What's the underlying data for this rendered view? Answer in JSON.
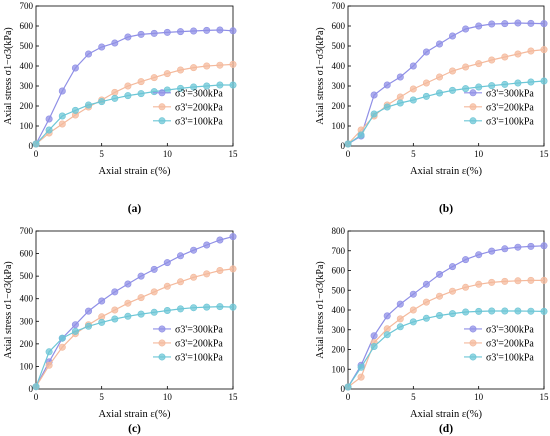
{
  "chart_data": [
    {
      "type": "line",
      "panel_label": "(a)",
      "xlabel": "Axial strain ε(%)",
      "ylabel": "Axial stress σ1−σ3(kPa)",
      "xlim": [
        0,
        15
      ],
      "ylim": [
        0,
        700
      ],
      "xticks": [
        0,
        5,
        10,
        15
      ],
      "yticks": [
        0,
        100,
        200,
        300,
        400,
        500,
        600,
        700
      ],
      "legend_position": "right-middle",
      "series": [
        {
          "name": "σ3'=300kPa",
          "color": "#8f8fe6",
          "points": [
            [
              0,
              10
            ],
            [
              1,
              135
            ],
            [
              2,
              275
            ],
            [
              3,
              390
            ],
            [
              4,
              460
            ],
            [
              5,
              495
            ],
            [
              6,
              515
            ],
            [
              7,
              545
            ],
            [
              8,
              558
            ],
            [
              9,
              563
            ],
            [
              10,
              568
            ],
            [
              11,
              572
            ],
            [
              12,
              575
            ],
            [
              13,
              578
            ],
            [
              14,
              580
            ],
            [
              15,
              576
            ]
          ]
        },
        {
          "name": "σ3'=200kPa",
          "color": "#f4b99c",
          "points": [
            [
              0,
              10
            ],
            [
              1,
              65
            ],
            [
              2,
              110
            ],
            [
              3,
              155
            ],
            [
              4,
              195
            ],
            [
              5,
              230
            ],
            [
              6,
              268
            ],
            [
              7,
              300
            ],
            [
              8,
              322
            ],
            [
              9,
              342
            ],
            [
              10,
              362
            ],
            [
              11,
              380
            ],
            [
              12,
              392
            ],
            [
              13,
              400
            ],
            [
              14,
              404
            ],
            [
              15,
              408
            ]
          ]
        },
        {
          "name": "σ3'=100kPa",
          "color": "#6cc6d6",
          "points": [
            [
              0,
              10
            ],
            [
              1,
              80
            ],
            [
              2,
              150
            ],
            [
              3,
              178
            ],
            [
              4,
              205
            ],
            [
              5,
              222
            ],
            [
              6,
              238
            ],
            [
              7,
              252
            ],
            [
              8,
              262
            ],
            [
              9,
              272
            ],
            [
              10,
              280
            ],
            [
              11,
              288
            ],
            [
              12,
              295
            ],
            [
              13,
              300
            ],
            [
              14,
              305
            ],
            [
              15,
              305
            ]
          ]
        }
      ]
    },
    {
      "type": "line",
      "panel_label": "(b)",
      "xlabel": "Axial strain ε(%)",
      "ylabel": "Axial stress σ1−σ3(kPa)",
      "xlim": [
        0,
        15
      ],
      "ylim": [
        0,
        700
      ],
      "xticks": [
        0,
        5,
        10,
        15
      ],
      "yticks": [
        0,
        100,
        200,
        300,
        400,
        500,
        600,
        700
      ],
      "legend_position": "right-middle",
      "series": [
        {
          "name": "σ3'=300kPa",
          "color": "#8f8fe6",
          "points": [
            [
              0,
              10
            ],
            [
              1,
              50
            ],
            [
              2,
              255
            ],
            [
              3,
              305
            ],
            [
              4,
              345
            ],
            [
              5,
              400
            ],
            [
              6,
              470
            ],
            [
              7,
              510
            ],
            [
              8,
              550
            ],
            [
              9,
              585
            ],
            [
              10,
              600
            ],
            [
              11,
              610
            ],
            [
              12,
              612
            ],
            [
              13,
              615
            ],
            [
              14,
              613
            ],
            [
              15,
              612
            ]
          ]
        },
        {
          "name": "σ3'=200kPa",
          "color": "#f4b99c",
          "points": [
            [
              0,
              10
            ],
            [
              1,
              80
            ],
            [
              2,
              150
            ],
            [
              3,
              205
            ],
            [
              4,
              245
            ],
            [
              5,
              285
            ],
            [
              6,
              315
            ],
            [
              7,
              345
            ],
            [
              8,
              375
            ],
            [
              9,
              395
            ],
            [
              10,
              412
            ],
            [
              11,
              430
            ],
            [
              12,
              445
            ],
            [
              13,
              460
            ],
            [
              14,
              475
            ],
            [
              15,
              482
            ]
          ]
        },
        {
          "name": "σ3'=100kPa",
          "color": "#6cc6d6",
          "points": [
            [
              0,
              10
            ],
            [
              1,
              55
            ],
            [
              2,
              160
            ],
            [
              3,
              195
            ],
            [
              4,
              215
            ],
            [
              5,
              230
            ],
            [
              6,
              248
            ],
            [
              7,
              265
            ],
            [
              8,
              278
            ],
            [
              9,
              287
            ],
            [
              10,
              295
            ],
            [
              11,
              302
            ],
            [
              12,
              308
            ],
            [
              13,
              315
            ],
            [
              14,
              320
            ],
            [
              15,
              325
            ]
          ]
        }
      ]
    },
    {
      "type": "line",
      "panel_label": "(c)",
      "xlabel": "Axial strain ε(%)",
      "ylabel": "Axial stress σ1−σ3(kPa)",
      "xlim": [
        0,
        15
      ],
      "ylim": [
        0,
        700
      ],
      "xticks": [
        0,
        5,
        10,
        15
      ],
      "yticks": [
        0,
        100,
        200,
        300,
        400,
        500,
        600,
        700
      ],
      "legend_position": "right-middle",
      "series": [
        {
          "name": "σ3'=300kPa",
          "color": "#8f8fe6",
          "points": [
            [
              0,
              10
            ],
            [
              1,
              120
            ],
            [
              2,
              225
            ],
            [
              3,
              285
            ],
            [
              4,
              345
            ],
            [
              5,
              390
            ],
            [
              6,
              430
            ],
            [
              7,
              465
            ],
            [
              8,
              500
            ],
            [
              9,
              530
            ],
            [
              10,
              560
            ],
            [
              11,
              590
            ],
            [
              12,
              615
            ],
            [
              13,
              638
            ],
            [
              14,
              660
            ],
            [
              15,
              675
            ]
          ]
        },
        {
          "name": "σ3'=200kPa",
          "color": "#f4b99c",
          "points": [
            [
              0,
              10
            ],
            [
              1,
              105
            ],
            [
              2,
              185
            ],
            [
              3,
              245
            ],
            [
              4,
              285
            ],
            [
              5,
              320
            ],
            [
              6,
              350
            ],
            [
              7,
              380
            ],
            [
              8,
              405
            ],
            [
              9,
              430
            ],
            [
              10,
              455
            ],
            [
              11,
              475
            ],
            [
              12,
              495
            ],
            [
              13,
              510
            ],
            [
              14,
              525
            ],
            [
              15,
              532
            ]
          ]
        },
        {
          "name": "σ3'=100kPa",
          "color": "#6cc6d6",
          "points": [
            [
              0,
              10
            ],
            [
              1,
              165
            ],
            [
              2,
              225
            ],
            [
              3,
              255
            ],
            [
              4,
              278
            ],
            [
              5,
              295
            ],
            [
              6,
              310
            ],
            [
              7,
              322
            ],
            [
              8,
              332
            ],
            [
              9,
              340
            ],
            [
              10,
              348
            ],
            [
              11,
              355
            ],
            [
              12,
              360
            ],
            [
              13,
              363
            ],
            [
              14,
              365
            ],
            [
              15,
              363
            ]
          ]
        }
      ]
    },
    {
      "type": "line",
      "panel_label": "(d)",
      "xlabel": "Axial strain ε(%)",
      "ylabel": "Axial stress σ1−σ3(kPa)",
      "xlim": [
        0,
        15
      ],
      "ylim": [
        0,
        800
      ],
      "xticks": [
        0,
        5,
        10,
        15
      ],
      "yticks": [
        0,
        100,
        200,
        300,
        400,
        500,
        600,
        700,
        800
      ],
      "legend_position": "right-middle",
      "series": [
        {
          "name": "σ3'=300kPa",
          "color": "#8f8fe6",
          "points": [
            [
              0,
              10
            ],
            [
              1,
              120
            ],
            [
              2,
              270
            ],
            [
              3,
              370
            ],
            [
              4,
              430
            ],
            [
              5,
              480
            ],
            [
              6,
              530
            ],
            [
              7,
              580
            ],
            [
              8,
              620
            ],
            [
              9,
              655
            ],
            [
              10,
              680
            ],
            [
              11,
              698
            ],
            [
              12,
              710
            ],
            [
              13,
              718
            ],
            [
              14,
              722
            ],
            [
              15,
              725
            ]
          ]
        },
        {
          "name": "σ3'=200kPa",
          "color": "#f4b99c",
          "points": [
            [
              0,
              10
            ],
            [
              1,
              60
            ],
            [
              2,
              235
            ],
            [
              3,
              305
            ],
            [
              4,
              355
            ],
            [
              5,
              400
            ],
            [
              6,
              440
            ],
            [
              7,
              470
            ],
            [
              8,
              495
            ],
            [
              9,
              515
            ],
            [
              10,
              530
            ],
            [
              11,
              540
            ],
            [
              12,
              545
            ],
            [
              13,
              548
            ],
            [
              14,
              550
            ],
            [
              15,
              550
            ]
          ]
        },
        {
          "name": "σ3'=100kPa",
          "color": "#6cc6d6",
          "points": [
            [
              0,
              10
            ],
            [
              1,
              110
            ],
            [
              2,
              215
            ],
            [
              3,
              275
            ],
            [
              4,
              315
            ],
            [
              5,
              340
            ],
            [
              6,
              358
            ],
            [
              7,
              372
            ],
            [
              8,
              382
            ],
            [
              9,
              390
            ],
            [
              10,
              393
            ],
            [
              11,
              395
            ],
            [
              12,
              395
            ],
            [
              13,
              395
            ],
            [
              14,
              394
            ],
            [
              15,
              393
            ]
          ]
        }
      ]
    }
  ]
}
